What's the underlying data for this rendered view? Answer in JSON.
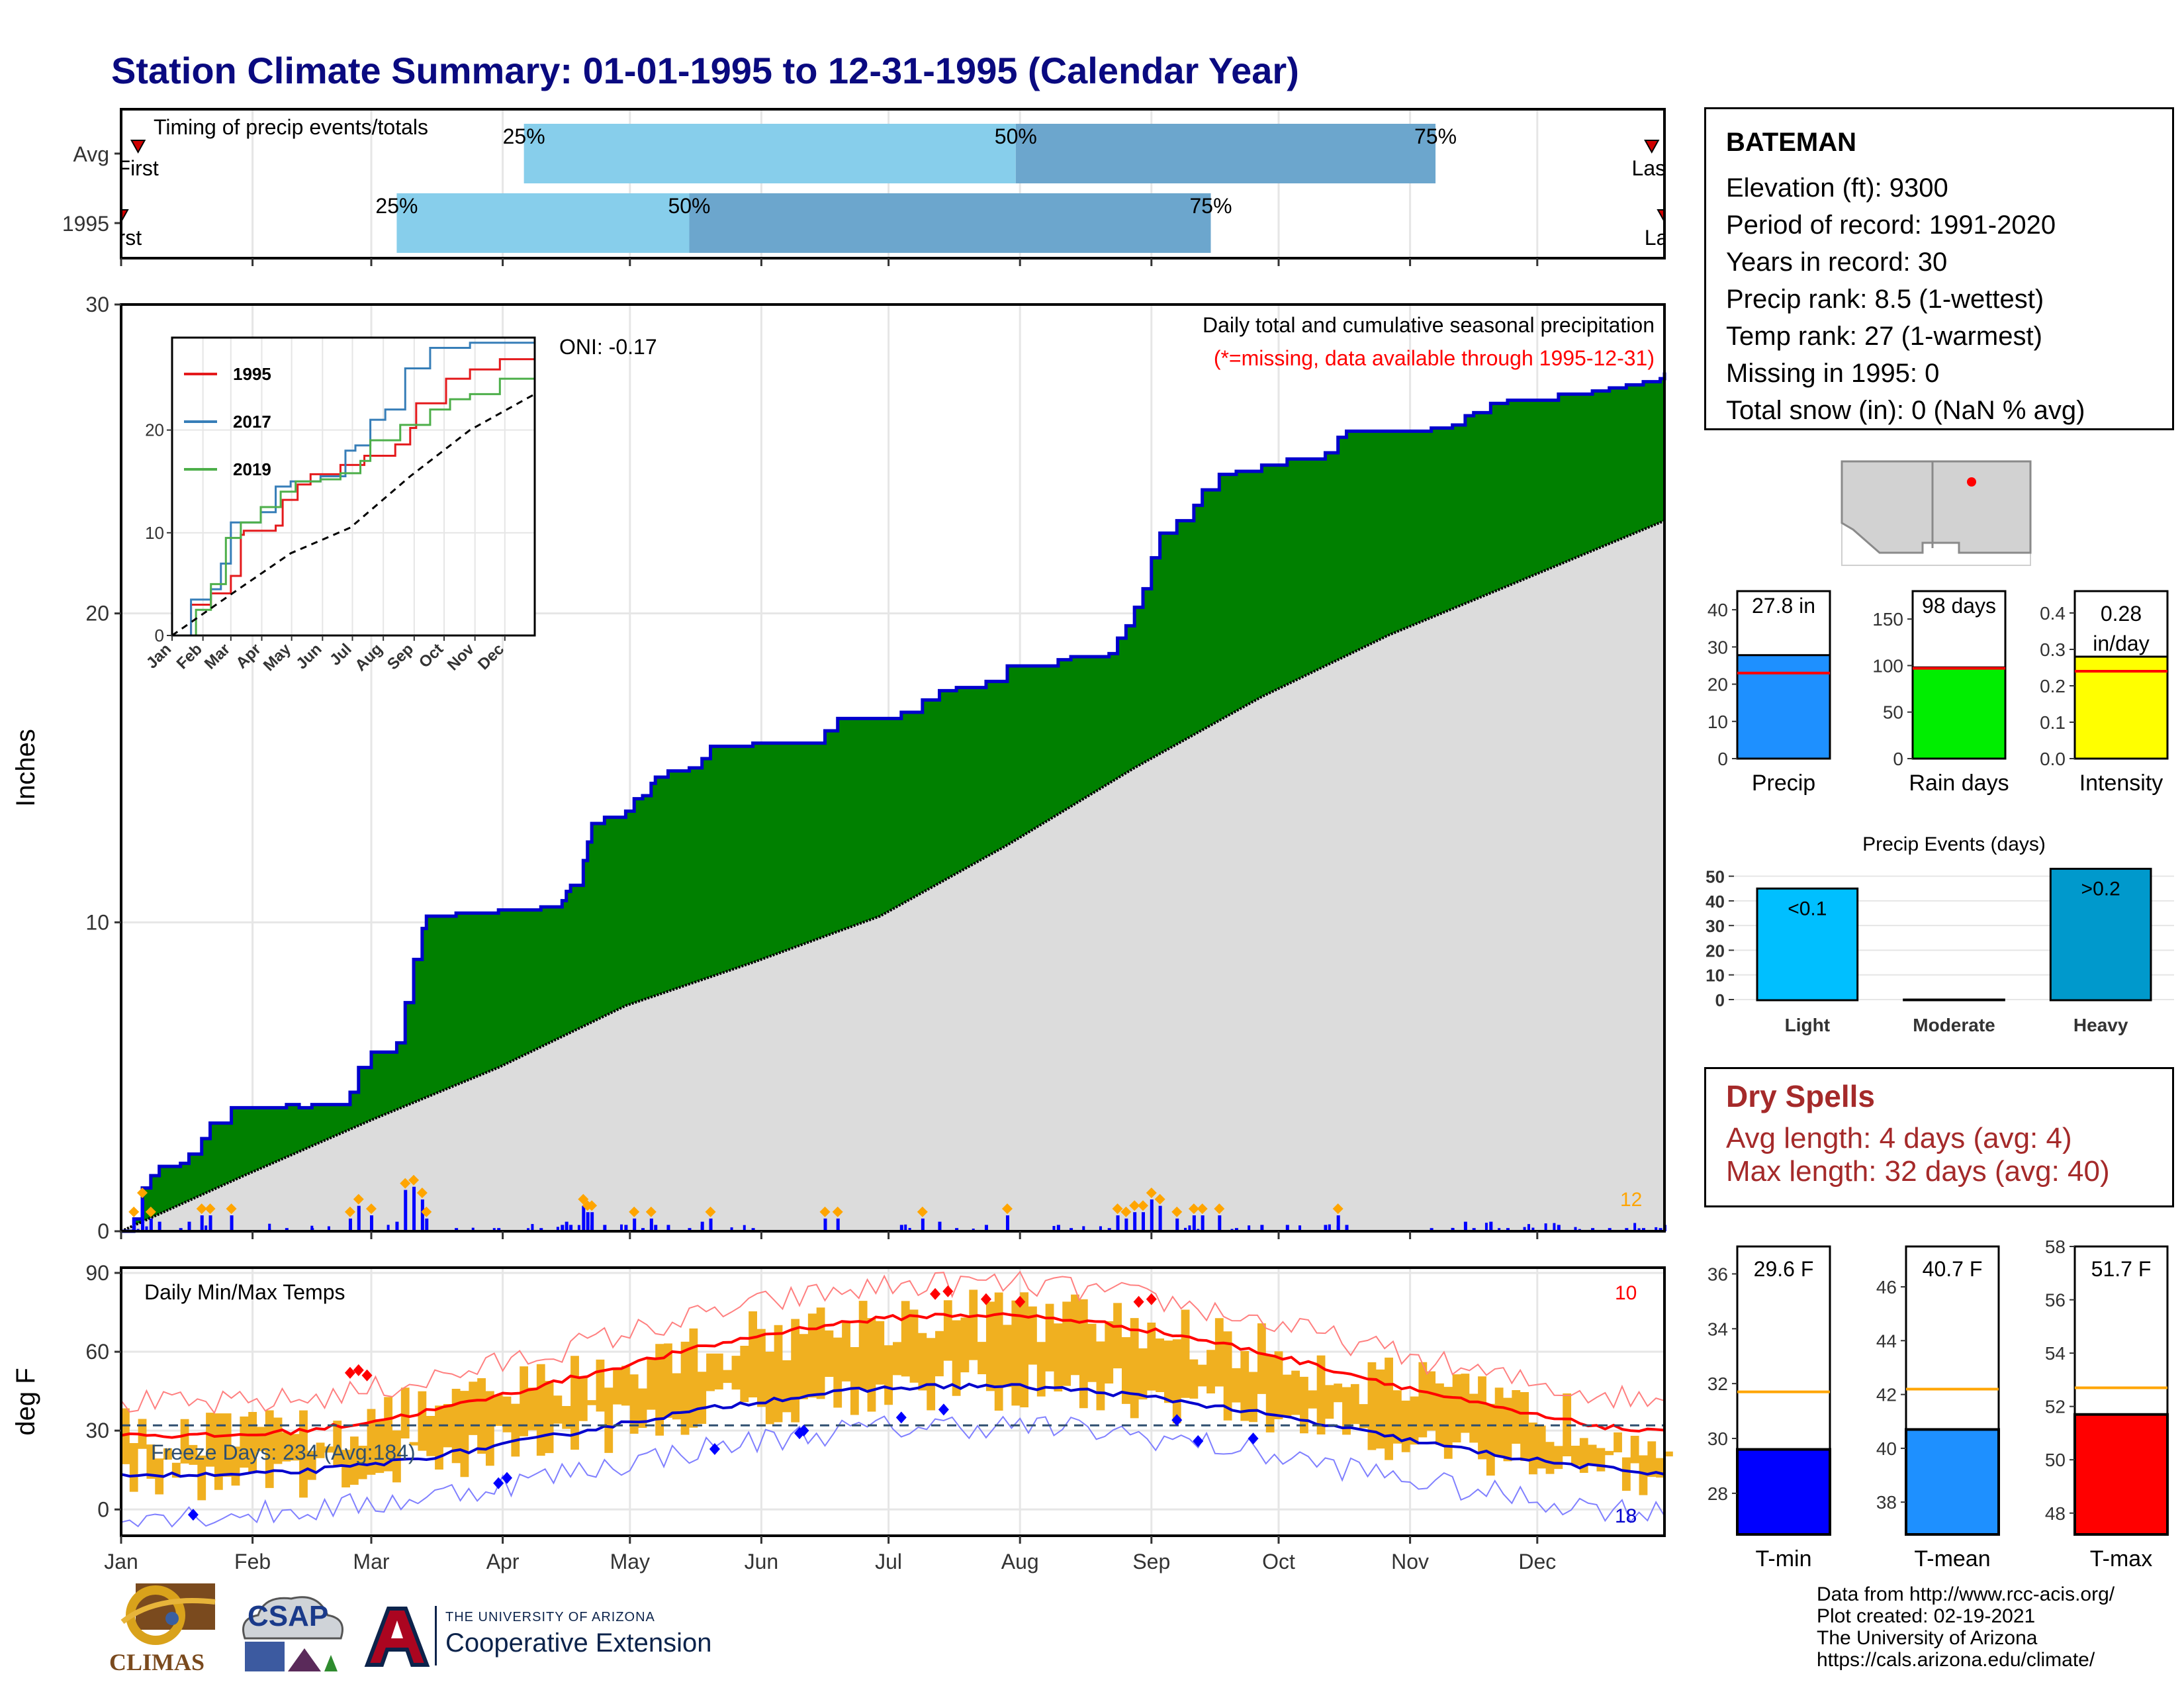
{
  "title": "Station Climate Summary: 01-01-1995 to 12-31-1995 (Calendar Year)",
  "months": [
    "Jan",
    "Feb",
    "Mar",
    "Apr",
    "May",
    "Jun",
    "Jul",
    "Aug",
    "Sep",
    "Oct",
    "Nov",
    "Dec"
  ],
  "timing": {
    "title": "Timing of precip events/totals",
    "rows": [
      {
        "label": "Avg",
        "first": "First",
        "last": "Last",
        "p25": "25%",
        "p50": "50%",
        "p75": "75%",
        "d25": 96,
        "d50": 212,
        "d75": 311,
        "first_day": 5,
        "last_day": 362
      },
      {
        "label": "1995",
        "first": "First",
        "last": "Last",
        "p25": "25%",
        "p50": "50%",
        "p75": "75%",
        "d25": 66,
        "d50": 135,
        "d75": 258,
        "first_day": 1,
        "last_day": 365
      }
    ]
  },
  "precip_panel": {
    "ylabel": "Inches",
    "yticks": [
      0,
      10,
      20,
      30
    ],
    "ylim": [
      0,
      30
    ],
    "header": "Daily total and cumulative seasonal precipitation",
    "missing_note": "(*=missing, data available through 1995-12-31)",
    "oni": "ONI: -0.17",
    "count_label": "12"
  },
  "chart_data": {
    "type": "area",
    "series": [
      {
        "name": "1995 cumulative",
        "points": [
          [
            1,
            0
          ],
          [
            4,
            0.4
          ],
          [
            6,
            1.4
          ],
          [
            8,
            1.8
          ],
          [
            10,
            2.1
          ],
          [
            15,
            2.2
          ],
          [
            17,
            2.5
          ],
          [
            20,
            3
          ],
          [
            22,
            3.5
          ],
          [
            27,
            4
          ],
          [
            40,
            4.1
          ],
          [
            43,
            4
          ],
          [
            46,
            4.1
          ],
          [
            52,
            4.1
          ],
          [
            55,
            4.5
          ],
          [
            57,
            5.3
          ],
          [
            60,
            5.8
          ],
          [
            64,
            5.8
          ],
          [
            66,
            6.1
          ],
          [
            68,
            7.4
          ],
          [
            70,
            8.8
          ],
          [
            72,
            9.8
          ],
          [
            73,
            10.2
          ],
          [
            80,
            10.3
          ],
          [
            85,
            10.3
          ],
          [
            90,
            10.4
          ],
          [
            100,
            10.5
          ],
          [
            105,
            10.7
          ],
          [
            106,
            11
          ],
          [
            107,
            11.2
          ],
          [
            110,
            12
          ],
          [
            111,
            12.6
          ],
          [
            112,
            13.2
          ],
          [
            115,
            13.4
          ],
          [
            120,
            13.6
          ],
          [
            122,
            14
          ],
          [
            124,
            14.1
          ],
          [
            126,
            14.5
          ],
          [
            127,
            14.7
          ],
          [
            130,
            14.9
          ],
          [
            135,
            15
          ],
          [
            138,
            15.3
          ],
          [
            140,
            15.7
          ],
          [
            150,
            15.8
          ],
          [
            162,
            15.8
          ],
          [
            167,
            16.2
          ],
          [
            170,
            16.6
          ],
          [
            177,
            16.6
          ],
          [
            182,
            16.6
          ],
          [
            185,
            16.8
          ],
          [
            190,
            17.2
          ],
          [
            194,
            17.5
          ],
          [
            198,
            17.6
          ],
          [
            205,
            17.8
          ],
          [
            210,
            18.3
          ],
          [
            215,
            18.3
          ],
          [
            222,
            18.5
          ],
          [
            225,
            18.6
          ],
          [
            230,
            18.6
          ],
          [
            234,
            18.7
          ],
          [
            236,
            19.2
          ],
          [
            238,
            19.6
          ],
          [
            240,
            20.2
          ],
          [
            242,
            20.8
          ],
          [
            244,
            21.8
          ],
          [
            246,
            22.6
          ],
          [
            250,
            23
          ],
          [
            254,
            23.5
          ],
          [
            256,
            24
          ],
          [
            260,
            24.5
          ],
          [
            264,
            24.6
          ],
          [
            270,
            24.8
          ],
          [
            276,
            25
          ],
          [
            280,
            25
          ],
          [
            285,
            25.2
          ],
          [
            288,
            25.7
          ],
          [
            290,
            25.9
          ],
          [
            300,
            25.9
          ],
          [
            305,
            25.9
          ],
          [
            310,
            26
          ],
          [
            315,
            26.1
          ],
          [
            318,
            26.4
          ],
          [
            320,
            26.5
          ],
          [
            324,
            26.8
          ],
          [
            328,
            26.9
          ],
          [
            340,
            27.1
          ],
          [
            348,
            27.2
          ],
          [
            352,
            27.3
          ],
          [
            356,
            27.4
          ],
          [
            360,
            27.5
          ],
          [
            364,
            27.6
          ],
          [
            365,
            27.8
          ]
        ]
      },
      {
        "name": "Average cumulative",
        "points": [
          [
            1,
            0
          ],
          [
            30,
            1.8
          ],
          [
            60,
            3.6
          ],
          [
            90,
            5.3
          ],
          [
            120,
            7.3
          ],
          [
            150,
            8.7
          ],
          [
            180,
            10.2
          ],
          [
            210,
            12.5
          ],
          [
            240,
            15
          ],
          [
            270,
            17.3
          ],
          [
            300,
            19.3
          ],
          [
            330,
            21
          ],
          [
            365,
            23
          ]
        ]
      }
    ],
    "daily_bars_note": "daily precipitation bars along baseline"
  },
  "inset": {
    "yticks": [
      0,
      10,
      20
    ],
    "ylim": [
      0,
      29
    ],
    "months": [
      "Jan",
      "Feb",
      "Mar",
      "Apr",
      "May",
      "Jun",
      "Jul",
      "Aug",
      "Sep",
      "Oct",
      "Nov",
      "Dec"
    ],
    "legend": [
      {
        "label": "1995",
        "color": "#e41a1c"
      },
      {
        "label": "2017",
        "color": "#377eb8"
      },
      {
        "label": "2019",
        "color": "#4daf4a"
      }
    ],
    "series": [
      {
        "name": "1995",
        "points": [
          [
            1,
            0
          ],
          [
            20,
            3
          ],
          [
            40,
            4.1
          ],
          [
            60,
            5.8
          ],
          [
            70,
            9.8
          ],
          [
            73,
            10.2
          ],
          [
            105,
            10.7
          ],
          [
            112,
            13.2
          ],
          [
            127,
            14.7
          ],
          [
            140,
            15.7
          ],
          [
            170,
            16.6
          ],
          [
            194,
            17.5
          ],
          [
            225,
            18.6
          ],
          [
            240,
            20.2
          ],
          [
            246,
            22.6
          ],
          [
            276,
            25
          ],
          [
            300,
            25.9
          ],
          [
            330,
            26.9
          ],
          [
            365,
            27.8
          ]
        ]
      },
      {
        "name": "2017",
        "points": [
          [
            1,
            0
          ],
          [
            20,
            3.5
          ],
          [
            40,
            4.5
          ],
          [
            50,
            7
          ],
          [
            60,
            11
          ],
          [
            90,
            12
          ],
          [
            105,
            14.5
          ],
          [
            120,
            15
          ],
          [
            150,
            15.5
          ],
          [
            175,
            18
          ],
          [
            185,
            18.5
          ],
          [
            200,
            21
          ],
          [
            215,
            22
          ],
          [
            235,
            26
          ],
          [
            260,
            28
          ],
          [
            300,
            28.5
          ],
          [
            365,
            29
          ]
        ]
      },
      {
        "name": "2019",
        "points": [
          [
            1,
            0
          ],
          [
            25,
            2.5
          ],
          [
            40,
            5
          ],
          [
            55,
            9.5
          ],
          [
            70,
            11
          ],
          [
            90,
            12.5
          ],
          [
            110,
            14
          ],
          [
            125,
            15
          ],
          [
            150,
            15.2
          ],
          [
            170,
            15.8
          ],
          [
            190,
            17
          ],
          [
            200,
            19
          ],
          [
            230,
            20.5
          ],
          [
            260,
            22
          ],
          [
            280,
            23
          ],
          [
            300,
            23.5
          ],
          [
            330,
            25
          ],
          [
            365,
            28.5
          ]
        ]
      },
      {
        "name": "avg",
        "dashed": true,
        "points": [
          [
            1,
            0
          ],
          [
            60,
            4
          ],
          [
            120,
            8
          ],
          [
            180,
            10.5
          ],
          [
            240,
            15.5
          ],
          [
            300,
            20
          ],
          [
            365,
            23.5
          ]
        ]
      }
    ]
  },
  "temp_panel": {
    "ylabel": "deg F",
    "yticks": [
      0,
      30,
      60,
      90
    ],
    "ylim": [
      -10,
      92
    ],
    "title": "Daily Min/Max Temps",
    "freeze": "Freeze Days: 234 (Avg:184)",
    "max_count": "10",
    "min_count": "18"
  },
  "station": {
    "name": "BATEMAN",
    "lines": [
      "Elevation (ft): 9300",
      "Period of record: 1991-2020",
      "Years in record: 30",
      "Precip rank: 8.5 (1-wettest)",
      "Temp rank: 27 (1-warmest)",
      "Missing in 1995: 0",
      "Total snow (in): 0 (NaN % avg)"
    ]
  },
  "summary_bars": [
    {
      "label": "Precip",
      "value": 27.8,
      "avg": 23.0,
      "text": "27.8 in",
      "color": "#1e90ff",
      "ylim": [
        0,
        45
      ],
      "yticks": [
        0,
        10,
        20,
        30,
        40
      ],
      "ytick_labels": [
        "0",
        "10",
        "20",
        "30",
        "40"
      ]
    },
    {
      "label": "Rain days",
      "value": 98,
      "avg": 97,
      "text": "98 days",
      "color": "#00ee00",
      "ylim": [
        0,
        180
      ],
      "yticks": [
        0,
        50,
        100,
        150
      ],
      "ytick_labels": [
        "0",
        "50",
        "100",
        "150"
      ]
    },
    {
      "label": "Intensity",
      "value": 0.28,
      "avg": 0.24,
      "text": "0.28 in/day",
      "color": "#ffff00",
      "ylim": [
        0,
        0.46
      ],
      "yticks": [
        0,
        0.1,
        0.2,
        0.3,
        0.4
      ],
      "ytick_labels": [
        "0.0",
        "0.1",
        "0.2",
        "0.3",
        "0.4"
      ]
    }
  ],
  "events": {
    "title": "Precip Events (days)",
    "yticks": [
      0,
      10,
      20,
      30,
      40,
      50
    ],
    "ylim": [
      0,
      55
    ],
    "bars": [
      {
        "label": "Light",
        "value": 45,
        "text": "<0.1",
        "color": "#00bfff"
      },
      {
        "label": "Moderate",
        "value": 0,
        "text": "",
        "color": "#1e9bd7"
      },
      {
        "label": "Heavy",
        "value": 53,
        "text": ">0.2",
        "color": "#0099cc"
      }
    ]
  },
  "dry_spells": {
    "title": "Dry Spells",
    "avg": "Avg length: 4 days (avg: 4)",
    "max": "Max length: 32 days (avg: 40)"
  },
  "temp_bars": [
    {
      "label": "T-min",
      "value": 29.6,
      "avg": 31.7,
      "text": "29.6 F",
      "color": "#0000ff",
      "ylim": [
        26.5,
        37
      ],
      "yticks": [
        28,
        30,
        32,
        34,
        36
      ]
    },
    {
      "label": "T-mean",
      "value": 40.7,
      "avg": 42.2,
      "text": "40.7 F",
      "color": "#1e90ff",
      "ylim": [
        36.8,
        47.5
      ],
      "yticks": [
        38,
        40,
        42,
        44,
        46
      ]
    },
    {
      "label": "T-max",
      "value": 51.7,
      "avg": 52.7,
      "text": "51.7 F",
      "color": "#ff0000",
      "ylim": [
        47.2,
        58
      ],
      "yticks": [
        48,
        50,
        52,
        54,
        56,
        58
      ]
    }
  ],
  "footer": [
    "Data from http://www.rcc-acis.org/",
    "Plot created: 02-19-2021",
    "The University of Arizona",
    "https://cals.arizona.edu/climate/"
  ],
  "logos": {
    "climas": "CLIMAS",
    "csap": "CSAP",
    "ua_line1": "THE UNIVERSITY OF ARIZONA",
    "ua_line2": "Cooperative Extension"
  }
}
